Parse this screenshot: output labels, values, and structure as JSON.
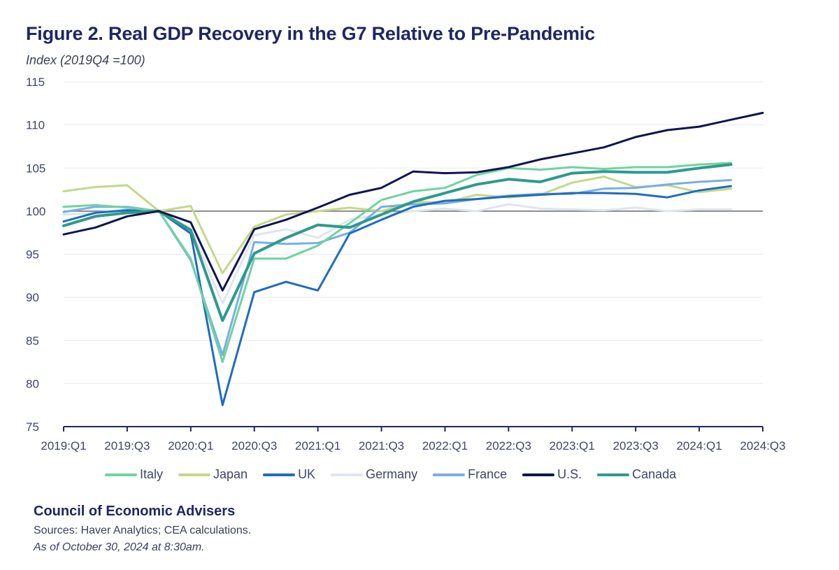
{
  "chart_data": {
    "type": "line",
    "title": "Figure 2. Real GDP Recovery in the G7 Relative to Pre-Pandemic",
    "subtitle": "Index (2019Q4 =100)",
    "xlabel": "",
    "ylabel": "Index (2019Q4 =100)",
    "ylim": [
      75,
      115
    ],
    "yticks": [
      75,
      80,
      85,
      90,
      95,
      100,
      105,
      110,
      115
    ],
    "reference_line": 100,
    "grid": true,
    "x": [
      "2019:Q1",
      "2019:Q2",
      "2019:Q3",
      "2019:Q4",
      "2020:Q1",
      "2020:Q2",
      "2020:Q3",
      "2020:Q4",
      "2021:Q1",
      "2021:Q2",
      "2021:Q3",
      "2021:Q4",
      "2022:Q1",
      "2022:Q2",
      "2022:Q3",
      "2022:Q4",
      "2023:Q1",
      "2023:Q2",
      "2023:Q3",
      "2023:Q4",
      "2024:Q1",
      "2024:Q2",
      "2024:Q3"
    ],
    "xtick_labels": [
      "2019:Q1",
      "2019:Q3",
      "2020:Q1",
      "2020:Q3",
      "2021:Q1",
      "2021:Q3",
      "2022:Q1",
      "2022:Q3",
      "2023:Q1",
      "2023:Q3",
      "2024:Q1",
      "2024:Q3"
    ],
    "legend_position": "bottom",
    "series": [
      {
        "name": "Italy",
        "color": "#6fd3a0",
        "width": 3,
        "values": [
          100.5,
          100.7,
          100.4,
          100,
          94.5,
          82.5,
          94.5,
          94.5,
          96.0,
          98.6,
          101.3,
          102.3,
          102.7,
          104.2,
          105.0,
          104.8,
          105.1,
          104.9,
          105.1,
          105.1,
          105.4,
          105.6
        ]
      },
      {
        "name": "Japan",
        "color": "#c3d88a",
        "width": 3,
        "values": [
          102.3,
          102.8,
          103.0,
          100,
          100.6,
          92.8,
          98.2,
          99.6,
          100.0,
          100.4,
          100.0,
          101.1,
          101.0,
          101.9,
          101.6,
          101.9,
          103.3,
          104.0,
          102.8,
          103.0,
          102.2,
          102.6
        ]
      },
      {
        "name": "UK",
        "color": "#1f6cc0",
        "width": 3,
        "values": [
          98.8,
          99.8,
          100.1,
          100,
          97.4,
          77.5,
          90.6,
          91.8,
          90.8,
          97.4,
          99.0,
          100.5,
          101.2,
          101.4,
          101.7,
          101.9,
          102.1,
          102.1,
          102.0,
          101.6,
          102.4,
          102.9
        ]
      },
      {
        "name": "Germany",
        "color": "#dfe5ef",
        "width": 3,
        "values": [
          99.6,
          99.8,
          100.2,
          100,
          98.0,
          89.3,
          97.2,
          97.9,
          96.9,
          99.0,
          99.6,
          100.0,
          100.3,
          100.0,
          100.8,
          100.3,
          100.2,
          100.1,
          100.4,
          100.0,
          100.2,
          100.2
        ]
      },
      {
        "name": "France",
        "color": "#79aee3",
        "width": 3,
        "values": [
          99.9,
          100.5,
          100.5,
          100,
          94.3,
          83.3,
          96.4,
          96.2,
          96.3,
          97.5,
          100.5,
          100.8,
          100.9,
          101.4,
          101.8,
          102.0,
          102.0,
          102.6,
          102.7,
          103.1,
          103.4,
          103.6
        ]
      },
      {
        "name": "U.S.",
        "color": "#0f1550",
        "width": 3,
        "values": [
          97.3,
          98.1,
          99.4,
          100,
          98.7,
          90.8,
          97.9,
          99.0,
          100.4,
          101.9,
          102.7,
          104.6,
          104.4,
          104.5,
          105.1,
          106.0,
          106.7,
          107.4,
          108.6,
          109.4,
          109.8,
          110.6,
          111.4
        ]
      },
      {
        "name": "Canada",
        "color": "#2e9a8c",
        "width": 4,
        "values": [
          98.3,
          99.4,
          99.8,
          100,
          97.8,
          87.3,
          95.1,
          96.9,
          98.4,
          98.1,
          99.6,
          101.1,
          102.1,
          103.1,
          103.7,
          103.4,
          104.4,
          104.6,
          104.5,
          104.5,
          105.0,
          105.4
        ]
      }
    ]
  },
  "footer": {
    "org": "Council of Economic Advisers",
    "sources": "Sources: Haver Analytics; CEA calculations.",
    "as_of": "As of October 30, 2024 at 8:30am."
  }
}
